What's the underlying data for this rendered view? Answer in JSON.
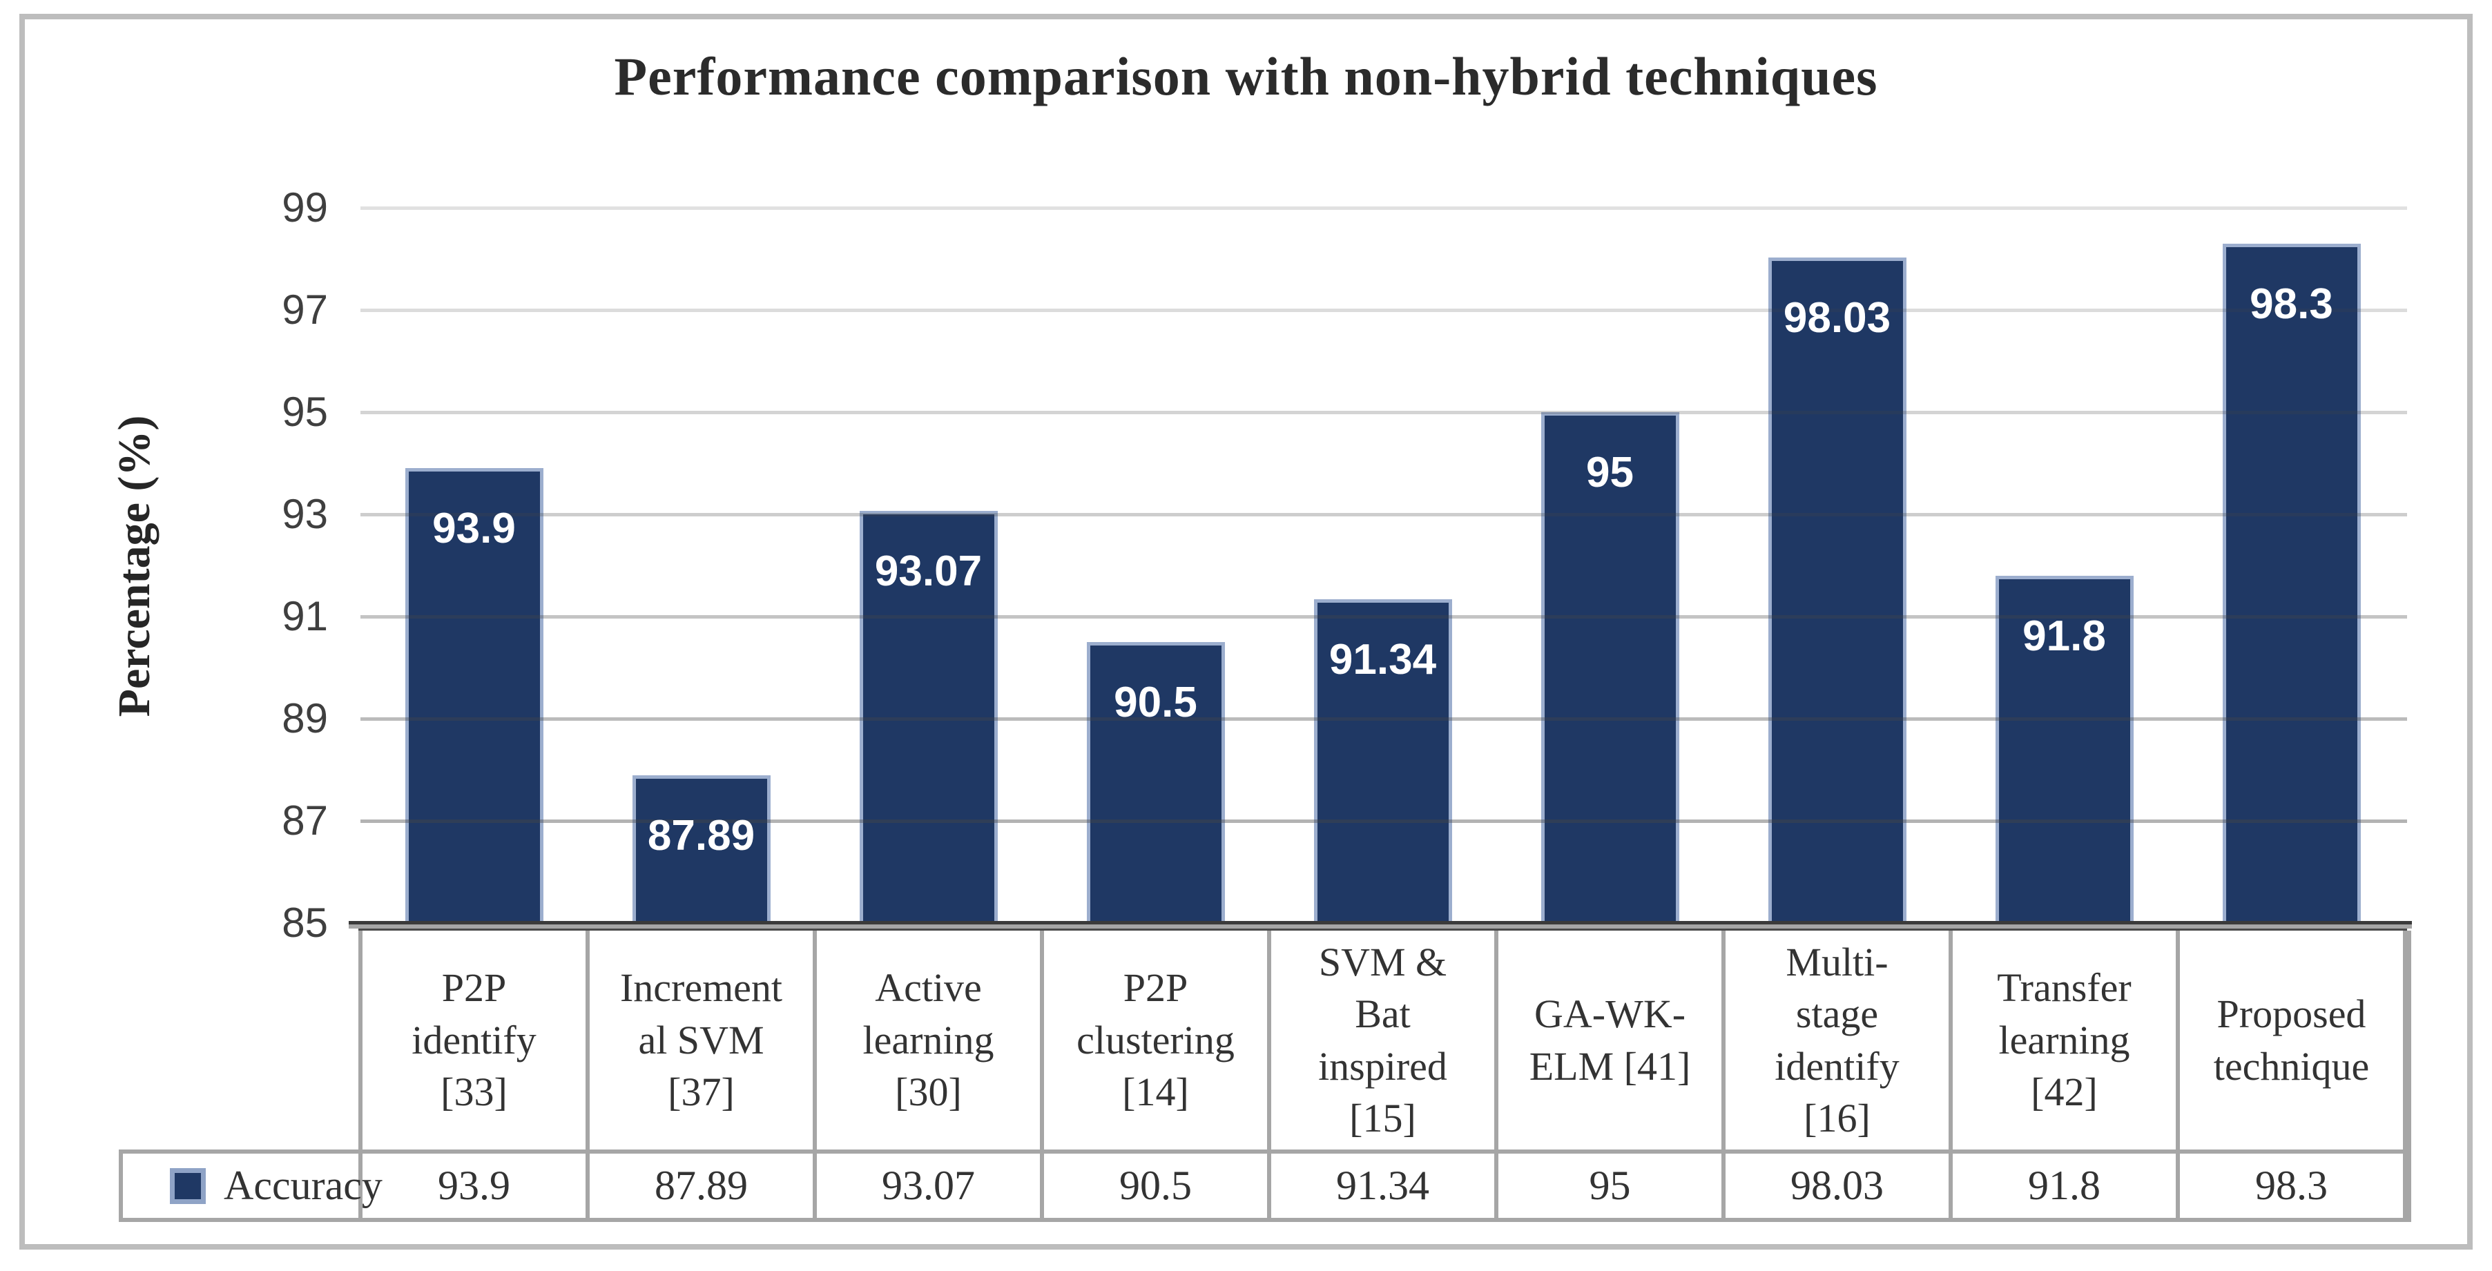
{
  "figure": {
    "title": "Performance comparison with non-hybrid techniques"
  },
  "chart_data": {
    "type": "bar",
    "title": "Performance comparison with non-hybrid techniques",
    "xlabel": "",
    "ylabel": "Percentage (%)",
    "ylim": [
      85,
      99
    ],
    "ytick_interval": 2,
    "yticks": [
      99,
      97,
      95,
      93,
      91,
      89,
      87,
      85
    ],
    "grid": "horizontal-on",
    "legend_position": "bottom-table-left",
    "categories": [
      "P2P\nidentify\n[33]",
      "Increment\nal SVM\n[37]",
      "Active\nlearning\n[30]",
      "P2P\nclustering\n[14]",
      "SVM &\nBat\ninspired\n[15]",
      "GA-WK-\nELM [41]",
      "Multi-\nstage\nidentify\n[16]",
      "Transfer\nlearning\n[42]",
      "Proposed\ntechnique"
    ],
    "series": [
      {
        "name": "Accuracy",
        "values": [
          93.9,
          87.89,
          93.07,
          90.5,
          91.34,
          95,
          98.03,
          91.8,
          98.3
        ],
        "labels": [
          "93.9",
          "87.89",
          "93.07",
          "90.5",
          "91.34",
          "95",
          "98.03",
          "91.8",
          "98.3"
        ]
      }
    ],
    "colors": {
      "bar_fill": "#1F3864",
      "bar_border": "#9CAECE",
      "bar_label_text": "#FFFFFF",
      "gridline_gray": "#C9C9C9",
      "axis_line": "#3A3A3A",
      "table_border": "#A6A6A6",
      "tick_text": "#3F3F3F",
      "table_text": "#333333",
      "outer_border": "#BDBDBD"
    }
  }
}
